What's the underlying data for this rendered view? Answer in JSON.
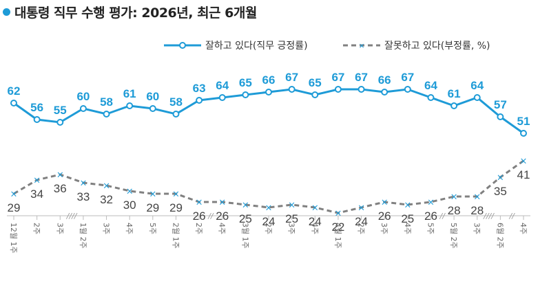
{
  "title": "대통령 직무 수행 평가: 2026년, 최근 6개월",
  "colors": {
    "approve": "#1e9bd7",
    "disapprove": "#808080"
  },
  "legend": {
    "approve": "잘하고 있다(직무 긍정률)",
    "disapprove": "잘못하고 있다(부정률, %)"
  },
  "chart_data": {
    "type": "line",
    "title": "대통령 직무 수행 평가: 2026년, 최근 6개월",
    "categories": [
      "12월 1주",
      "2주",
      "3주",
      "1월 2주",
      "3주",
      "4주",
      "5주",
      "2월 1주",
      "2주",
      "4주",
      "3월 1주",
      "2주",
      "3주",
      "4주",
      "4월 1주",
      "2주",
      "3주",
      "4주",
      "5주",
      "5월 2주",
      "3주",
      "6월 2주",
      "4주"
    ],
    "series": [
      {
        "name": "잘하고 있다(직무 긍정률)",
        "values": [
          62,
          56,
          55,
          60,
          58,
          61,
          60,
          58,
          63,
          64,
          65,
          66,
          67,
          65,
          67,
          67,
          66,
          67,
          64,
          61,
          64,
          57,
          51
        ]
      },
      {
        "name": "잘못하고 있다(부정률, %)",
        "values": [
          29,
          34,
          36,
          33,
          32,
          30,
          29,
          29,
          26,
          26,
          25,
          24,
          25,
          24,
          22,
          24,
          26,
          25,
          26,
          28,
          28,
          35,
          41
        ]
      }
    ],
    "break_marks": [
      "////",
      "//",
      "//",
      "////",
      "//"
    ],
    "legend_position": "top-right"
  }
}
